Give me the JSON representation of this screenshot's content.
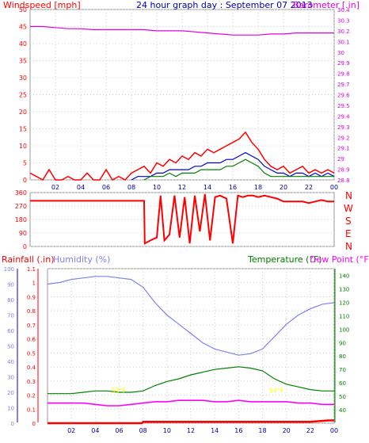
{
  "top_labels": {
    "windspeed": "Windspeed [mph]",
    "title": "24 hour graph day : September 07 2013",
    "barometer": "Barometer [.in]"
  },
  "middle_labels": {
    "directions": [
      "N",
      "W",
      "S",
      "E",
      "N"
    ]
  },
  "bottom_labels": {
    "rainfall": "Rainfall (.in)",
    "humidity": "Humidity (%)",
    "temperature": "Temperature (°F)",
    "dewpoint": "Dew Point (°F)"
  },
  "colors": {
    "wind_gust": "#ff0000",
    "wind_avg": "#0000cc",
    "wind_low": "#008000",
    "barometer": "#e000e0",
    "direction": "#ff0000",
    "humidity": "#8080ee",
    "temperature": "#008000",
    "dewpoint": "#ff00ff",
    "rain": "#ff0000",
    "annotation": "#ffff00",
    "grid": "#bbbbbb",
    "axis_left_top": "#ff0000",
    "axis_right_top": "#e000e0",
    "title_color": "#0000aa"
  },
  "chart_data": [
    {
      "type": "line",
      "name": "wind-barometer",
      "xlabel": "",
      "x_ticks": [
        "02",
        "04",
        "06",
        "08",
        "10",
        "12",
        "14",
        "16",
        "18",
        "20",
        "22",
        "00"
      ],
      "y_left_ticks": [
        "0",
        "5",
        "10",
        "15",
        "20",
        "25",
        "30",
        "35",
        "40",
        "45",
        "50"
      ],
      "y_left_range": [
        0,
        50
      ],
      "y_right_ticks": [
        "28.8",
        "28.9",
        "29",
        "29.1",
        "29.2",
        "29.3",
        "29.4",
        "29.5",
        "29.6",
        "29.7",
        "29.8",
        "29.9",
        "30",
        "30.1",
        "30.2",
        "30.3",
        "30.4"
      ],
      "y_right_range": [
        28.8,
        30.4
      ],
      "series": [
        {
          "key": "gust",
          "x": [
            0,
            0.5,
            1,
            1.5,
            2,
            2.5,
            3,
            3.5,
            4,
            4.5,
            5,
            5.5,
            6,
            6.5,
            7,
            7.5,
            8,
            8.5,
            9,
            9.5,
            10,
            10.5,
            11,
            11.5,
            12,
            12.5,
            13,
            13.5,
            14,
            14.5,
            15,
            15.5,
            16,
            16.5,
            17,
            17.5,
            18,
            18.5,
            19,
            19.5,
            20,
            20.5,
            21,
            21.5,
            22,
            22.5,
            23,
            23.5,
            24
          ],
          "y": [
            2,
            1,
            0,
            3,
            0,
            0,
            1,
            0,
            0,
            2,
            0,
            0,
            3,
            0,
            1,
            0,
            2,
            3,
            4,
            2,
            5,
            4,
            6,
            5,
            7,
            6,
            8,
            7,
            9,
            8,
            9,
            10,
            11,
            12,
            14,
            11,
            9,
            6,
            4,
            3,
            4,
            2,
            3,
            4,
            2,
            3,
            2,
            3,
            2
          ]
        },
        {
          "key": "avg",
          "x": [
            8,
            8.5,
            9,
            9.5,
            10,
            10.5,
            11,
            11.5,
            12,
            12.5,
            13,
            13.5,
            14,
            14.5,
            15,
            15.5,
            16,
            16.5,
            17,
            17.5,
            18,
            18.5,
            19,
            19.5,
            20,
            20.5,
            21,
            21.5,
            22,
            22.5,
            23,
            23.5,
            24
          ],
          "y": [
            0,
            1,
            1,
            1,
            2,
            2,
            3,
            3,
            3,
            3,
            4,
            4,
            5,
            5,
            5,
            6,
            6,
            7,
            8,
            7,
            6,
            4,
            3,
            2,
            2,
            1,
            2,
            2,
            1,
            2,
            1,
            2,
            1
          ]
        },
        {
          "key": "low",
          "x": [
            9,
            9.5,
            10,
            10.5,
            11,
            11.5,
            12,
            12.5,
            13,
            13.5,
            14,
            14.5,
            15,
            15.5,
            16,
            16.5,
            17,
            17.5,
            18,
            18.5,
            19,
            19.5,
            20,
            20.5,
            21,
            21.5,
            22,
            22.5,
            23,
            23.5,
            24
          ],
          "y": [
            0,
            1,
            1,
            1,
            2,
            1,
            2,
            2,
            2,
            3,
            3,
            3,
            3,
            4,
            4,
            5,
            6,
            5,
            4,
            2,
            1,
            1,
            1,
            1,
            1,
            1,
            1,
            1,
            1,
            1,
            1
          ]
        },
        {
          "key": "barometer",
          "x": [
            0,
            1,
            2,
            3,
            4,
            5,
            6,
            7,
            8,
            9,
            10,
            11,
            12,
            13,
            14,
            15,
            16,
            17,
            18,
            19,
            20,
            21,
            22,
            23,
            24
          ],
          "y": [
            30.24,
            30.24,
            30.23,
            30.22,
            30.22,
            30.21,
            30.21,
            30.21,
            30.21,
            30.21,
            30.2,
            30.2,
            30.2,
            30.19,
            30.18,
            30.17,
            30.16,
            30.16,
            30.16,
            30.17,
            30.17,
            30.18,
            30.18,
            30.18,
            30.18
          ]
        }
      ]
    },
    {
      "type": "line",
      "name": "wind-direction",
      "y_left_ticks": [
        "0",
        "90",
        "180",
        "270",
        "360"
      ],
      "y_range": [
        0,
        360
      ],
      "x_ticks": [],
      "series": [
        {
          "key": "direction",
          "x": [
            0,
            2,
            4,
            6,
            8,
            9,
            9.05,
            9.5,
            10,
            10.3,
            10.6,
            11,
            11.4,
            11.8,
            12.2,
            12.6,
            13,
            13.4,
            13.8,
            14.2,
            14.6,
            15,
            15.5,
            16,
            16.4,
            16.8,
            17.2,
            17.6,
            18,
            18.5,
            19,
            19.5,
            20,
            20.5,
            21,
            21.5,
            22,
            22.5,
            23,
            23.5,
            24
          ],
          "y": [
            305,
            305,
            305,
            305,
            305,
            305,
            20,
            40,
            60,
            340,
            40,
            80,
            340,
            60,
            330,
            20,
            340,
            100,
            350,
            40,
            330,
            340,
            320,
            20,
            340,
            330,
            340,
            340,
            330,
            340,
            330,
            320,
            300,
            300,
            300,
            300,
            290,
            300,
            310,
            300,
            300
          ]
        }
      ]
    },
    {
      "type": "line",
      "name": "rain-humidity-temperature",
      "x_ticks": [
        "02",
        "04",
        "06",
        "08",
        "10",
        "12",
        "14",
        "16",
        "18",
        "20",
        "22",
        "00"
      ],
      "y_rain_ticks": [
        "0",
        "0.1",
        "0.2",
        "0.3",
        "0.4",
        "0.5",
        "0.6",
        "0.7",
        "0.8",
        "0.9",
        "1",
        "1.1"
      ],
      "y_rain_range": [
        0,
        1.1
      ],
      "y_humidity_ticks": [
        "0",
        "10",
        "20",
        "30",
        "40",
        "50",
        "60",
        "70",
        "80",
        "90",
        "100"
      ],
      "y_humidity_range": [
        0,
        100
      ],
      "y_temp_ticks": [
        "40",
        "50",
        "60",
        "70",
        "80",
        "90",
        "100",
        "110",
        "120",
        "130",
        "140"
      ],
      "y_temp_range": [
        30,
        145
      ],
      "annotations": [
        {
          "x": 6,
          "text": "54°F"
        },
        {
          "x": 19.2,
          "text": "54°F"
        }
      ],
      "series": [
        {
          "key": "humidity",
          "x": [
            0,
            1,
            2,
            3,
            4,
            5,
            6,
            7,
            8,
            9,
            10,
            11,
            12,
            13,
            14,
            15,
            16,
            17,
            18,
            19,
            20,
            21,
            22,
            23,
            24
          ],
          "y": [
            90,
            91,
            93,
            94,
            95,
            95,
            94,
            93,
            88,
            78,
            70,
            64,
            58,
            52,
            48,
            46,
            44,
            45,
            48,
            56,
            64,
            70,
            74,
            77,
            78
          ]
        },
        {
          "key": "temperature",
          "x": [
            0,
            1,
            2,
            3,
            4,
            5,
            6,
            7,
            8,
            9,
            10,
            11,
            12,
            13,
            14,
            15,
            16,
            17,
            18,
            19,
            20,
            21,
            22,
            23,
            24
          ],
          "y": [
            52,
            52,
            52,
            53,
            54,
            54,
            53,
            53,
            54,
            58,
            61,
            63,
            66,
            68,
            70,
            71,
            72,
            71,
            69,
            63,
            59,
            57,
            55,
            54,
            54
          ]
        },
        {
          "key": "dewpoint",
          "x": [
            0,
            1,
            2,
            3,
            4,
            5,
            6,
            7,
            8,
            9,
            10,
            11,
            12,
            13,
            14,
            15,
            16,
            17,
            18,
            19,
            20,
            21,
            22,
            23,
            24
          ],
          "y": [
            45,
            45,
            45,
            45,
            44,
            43,
            43,
            44,
            45,
            46,
            46,
            47,
            47,
            47,
            46,
            46,
            47,
            46,
            46,
            46,
            46,
            45,
            45,
            44,
            44
          ]
        },
        {
          "key": "rain",
          "x": [
            0,
            4,
            7.9,
            8,
            20,
            22,
            23.5,
            24
          ],
          "y": [
            0,
            0,
            0,
            0.01,
            0.01,
            0.01,
            0.02,
            0.02
          ]
        }
      ]
    }
  ]
}
